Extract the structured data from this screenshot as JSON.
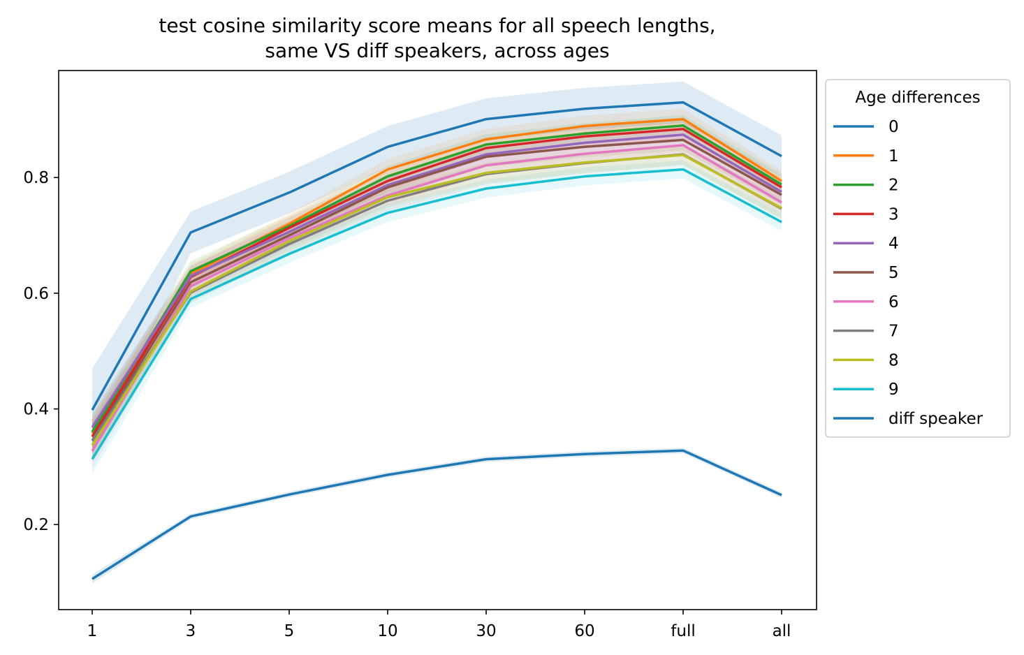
{
  "chart_data": {
    "type": "line",
    "title": "test cosine similarity score means for all speech lengths,",
    "subtitle": "same VS diff speakers, across ages",
    "xlabel": "",
    "ylabel": "",
    "categories": [
      "1",
      "3",
      "5",
      "10",
      "30",
      "60",
      "full",
      "all"
    ],
    "ylim": [
      0.053,
      0.985
    ],
    "yticks": [
      "0.2",
      "0.4",
      "0.6",
      "0.8"
    ],
    "yticks_values": [
      0.2,
      0.4,
      0.6,
      0.8
    ],
    "grid": false,
    "legend": {
      "title": "Age differences",
      "placement": "outside-right"
    },
    "series": [
      {
        "name": "0",
        "color": "#1f77b4",
        "values": [
          0.398,
          0.705,
          0.774,
          0.853,
          0.901,
          0.919,
          0.93,
          0.837
        ],
        "band": 0.072
      },
      {
        "name": "1",
        "color": "#ff7f0e",
        "values": [
          0.358,
          0.633,
          0.72,
          0.814,
          0.866,
          0.889,
          0.901,
          0.794
        ],
        "band": 0.03
      },
      {
        "name": "2",
        "color": "#2ca02c",
        "values": [
          0.36,
          0.638,
          0.716,
          0.802,
          0.857,
          0.876,
          0.89,
          0.788
        ],
        "band": 0.03
      },
      {
        "name": "3",
        "color": "#d62728",
        "values": [
          0.352,
          0.628,
          0.713,
          0.794,
          0.851,
          0.871,
          0.884,
          0.783
        ],
        "band": 0.03
      },
      {
        "name": "4",
        "color": "#9467bd",
        "values": [
          0.368,
          0.63,
          0.706,
          0.787,
          0.84,
          0.86,
          0.874,
          0.775
        ],
        "band": 0.03
      },
      {
        "name": "5",
        "color": "#8c564b",
        "values": [
          0.345,
          0.619,
          0.7,
          0.783,
          0.836,
          0.853,
          0.865,
          0.77
        ],
        "band": 0.03
      },
      {
        "name": "6",
        "color": "#e377c2",
        "values": [
          0.327,
          0.612,
          0.695,
          0.769,
          0.821,
          0.841,
          0.856,
          0.757
        ],
        "band": 0.03
      },
      {
        "name": "7",
        "color": "#7f7f7f",
        "values": [
          0.345,
          0.601,
          0.685,
          0.76,
          0.806,
          0.825,
          0.84,
          0.746
        ],
        "band": 0.03
      },
      {
        "name": "8",
        "color": "#bcbd22",
        "values": [
          0.337,
          0.603,
          0.69,
          0.766,
          0.808,
          0.826,
          0.839,
          0.747
        ],
        "band": 0.03
      },
      {
        "name": "9",
        "color": "#17becf",
        "values": [
          0.313,
          0.59,
          0.668,
          0.739,
          0.781,
          0.802,
          0.814,
          0.723
        ],
        "band": 0.026
      },
      {
        "name": "diff speaker",
        "color": "#1f77b4",
        "values": [
          0.106,
          0.214,
          0.252,
          0.286,
          0.313,
          0.322,
          0.328,
          0.251
        ],
        "band": 0.008
      }
    ]
  }
}
